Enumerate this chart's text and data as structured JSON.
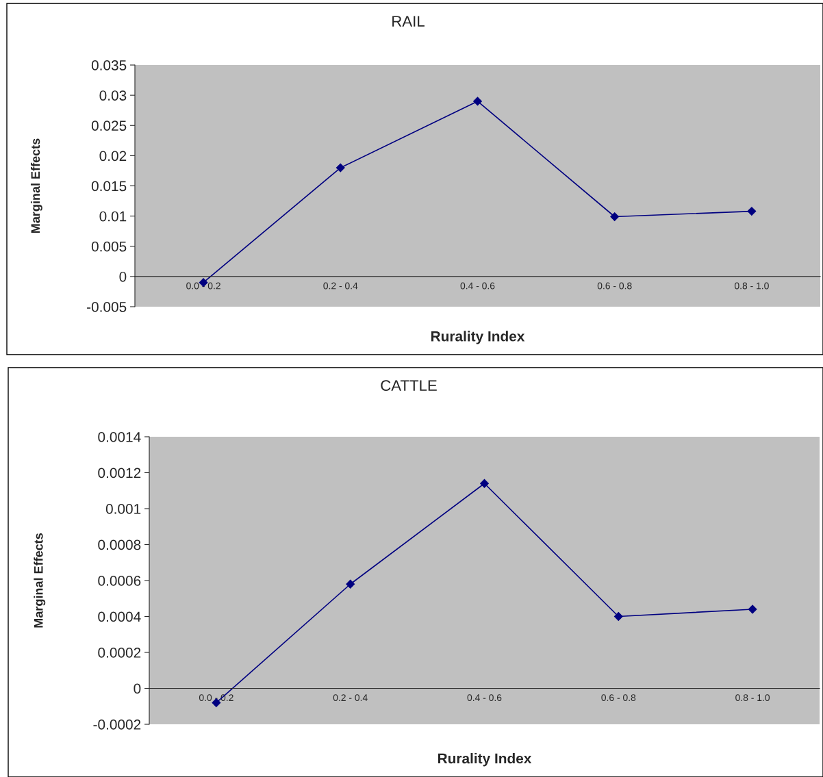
{
  "chart_data": [
    {
      "type": "line",
      "title": "RAIL",
      "xlabel": "Rurality Index",
      "ylabel": "Marginal Effects",
      "categories": [
        "0.0 - 0.2",
        "0.2 - 0.4",
        "0.4 - 0.6",
        "0.6 - 0.8",
        "0.8 - 1.0"
      ],
      "series": [
        {
          "color": "#000080",
          "values": [
            -0.001,
            0.018,
            0.029,
            0.0099,
            0.0108
          ]
        }
      ],
      "ylim": [
        -0.005,
        0.035
      ],
      "yticks": [
        -0.005,
        0,
        0.005,
        0.01,
        0.015,
        0.02,
        0.025,
        0.03,
        0.035
      ],
      "grid": false,
      "legend": false,
      "marker": "diamond",
      "line_style": "solid"
    },
    {
      "type": "line",
      "title": "CATTLE",
      "xlabel": "Rurality Index",
      "ylabel": "Marginal Effects",
      "categories": [
        "0.0 - 0.2",
        "0.2 - 0.4",
        "0.4 - 0.6",
        "0.6 - 0.8",
        "0.8 - 1.0"
      ],
      "series": [
        {
          "color": "#000080",
          "values": [
            -8e-05,
            0.00058,
            0.00114,
            0.0004,
            0.00044
          ]
        }
      ],
      "ylim": [
        -0.0002,
        0.0014
      ],
      "yticks": [
        -0.0002,
        0,
        0.0002,
        0.0004,
        0.0006,
        0.0008,
        0.001,
        0.0012,
        0.0014
      ],
      "grid": false,
      "legend": false,
      "marker": "diamond",
      "line_style": "solid"
    }
  ]
}
